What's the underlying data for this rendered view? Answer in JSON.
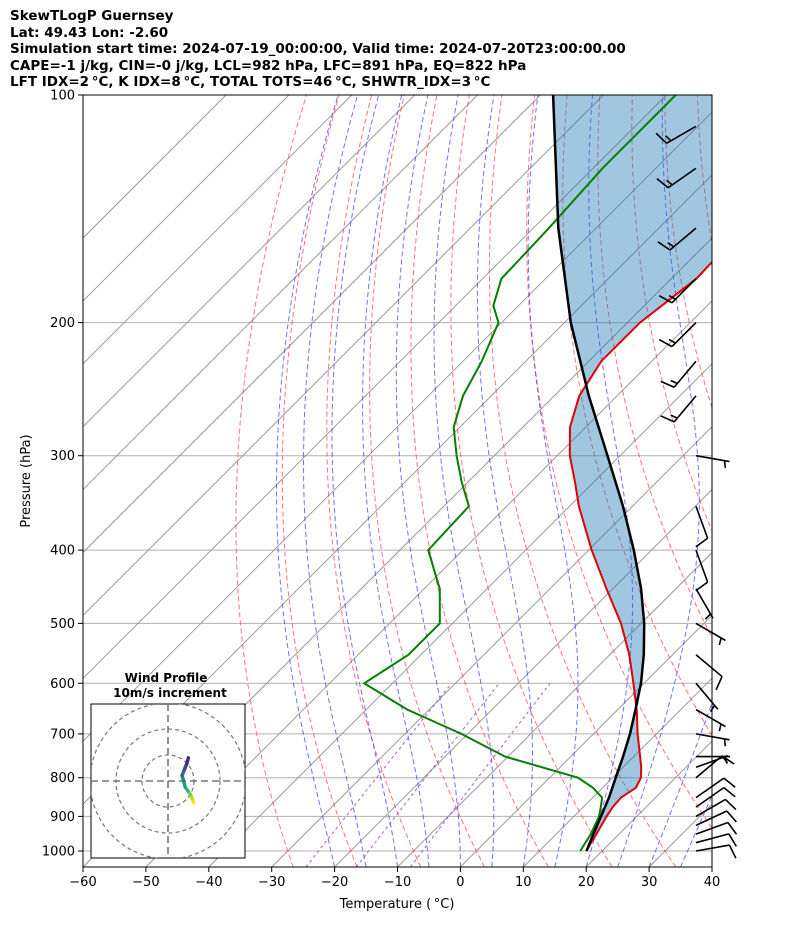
{
  "header": {
    "line1": "SkewTLogP Guernsey",
    "line2": "Lat: 49.43   Lon: -2.60",
    "line3": "Simulation start time: 2024-07-19_00:00:00, Valid time: 2024-07-20T23:00:00.00",
    "line4": "CAPE=-1 j/kg, CIN=-0 j/kg, LCL=982 hPa, LFC=891 hPa, EQ=822 hPa",
    "line5": "LFT IDX=2 °C, K IDX=8 °C, TOTAL TOTS=46 °C, SHWTR_IDX=3 °C"
  },
  "chart_data": {
    "type": "skew-t log-p",
    "xlabel": "Temperature ( °C)",
    "ylabel": "Pressure (hPa)",
    "xlim": [
      -60,
      40
    ],
    "ylim_hpa": [
      1050,
      100
    ],
    "x_ticks": [
      "−60",
      "−50",
      "−40",
      "−30",
      "−20",
      "−10",
      "0",
      "10",
      "20",
      "30",
      "40"
    ],
    "x_tick_values": [
      -60,
      -50,
      -40,
      -30,
      -20,
      -10,
      0,
      10,
      20,
      30,
      40
    ],
    "y_ticks": [
      "1000",
      "900",
      "800",
      "700",
      "600",
      "500",
      "400",
      "300",
      "200",
      "100"
    ],
    "y_tick_values": [
      1000,
      900,
      800,
      700,
      600,
      500,
      400,
      300,
      200,
      100
    ],
    "grid": true,
    "colors": {
      "temperature": "#e00000",
      "dewpoint": "#008000",
      "parcel": "#000000",
      "shade": "#1f77b4",
      "dry_adiabat": "#ff4444",
      "moist_adiabat": "#3333ff",
      "mixing_ratio": "#9933cc",
      "isotherm": "#999999"
    },
    "series": [
      {
        "key": "temperature",
        "pressure": [
          1000,
          975,
          950,
          925,
          900,
          875,
          850,
          825,
          800,
          775,
          750,
          700,
          650,
          600,
          550,
          500,
          450,
          400,
          350,
          325,
          300,
          275,
          250,
          225,
          200,
          175,
          150,
          125,
          100
        ],
        "temperature": [
          17.5,
          16.9,
          16.4,
          15.8,
          15.2,
          14.7,
          14.5,
          15.3,
          14.5,
          12.9,
          11.0,
          7.0,
          3.0,
          -1.7,
          -6.9,
          -13.2,
          -21.0,
          -29.5,
          -38.5,
          -43.0,
          -48.0,
          -52.5,
          -56.0,
          -58.0,
          -58.0,
          -56.0,
          -56.5,
          -57.0,
          -57.0
        ]
      },
      {
        "key": "dewpoint",
        "pressure": [
          1000,
          950,
          900,
          875,
          850,
          825,
          800,
          750,
          700,
          650,
          600,
          550,
          500,
          450,
          400,
          350,
          325,
          300,
          275,
          250,
          225,
          200,
          190,
          175,
          150,
          125,
          100
        ],
        "dewpoint": [
          16.5,
          15.5,
          14.0,
          12.8,
          11.5,
          8.5,
          4.5,
          -10.5,
          -21.0,
          -33.5,
          -44.5,
          -42.0,
          -42.0,
          -47.5,
          -55.5,
          -56.0,
          -61.0,
          -66.0,
          -71.0,
          -74.5,
          -77.0,
          -80.5,
          -84.0,
          -87.0,
          -87.5,
          -88.5,
          -88.5
        ]
      },
      {
        "key": "parcel",
        "pressure": [
          1000,
          950,
          900,
          850,
          800,
          750,
          700,
          650,
          600,
          550,
          500,
          450,
          400,
          350,
          300,
          250,
          200,
          150,
          100
        ],
        "temperature": [
          17.5,
          15.9,
          14.3,
          12.6,
          10.5,
          8.3,
          5.8,
          2.8,
          -0.5,
          -4.6,
          -9.5,
          -15.5,
          -22.8,
          -31.5,
          -42.0,
          -54.5,
          -69.0,
          -86.0,
          -108.0
        ]
      }
    ],
    "wind_barbs": [
      {
        "pressure": 1000,
        "speed_kt": 10,
        "direction_deg": 80
      },
      {
        "pressure": 975,
        "speed_kt": 10,
        "direction_deg": 75
      },
      {
        "pressure": 950,
        "speed_kt": 10,
        "direction_deg": 70
      },
      {
        "pressure": 925,
        "speed_kt": 10,
        "direction_deg": 65
      },
      {
        "pressure": 900,
        "speed_kt": 10,
        "direction_deg": 60
      },
      {
        "pressure": 875,
        "speed_kt": 10,
        "direction_deg": 55
      },
      {
        "pressure": 850,
        "speed_kt": 10,
        "direction_deg": 55
      },
      {
        "pressure": 800,
        "speed_kt": 10,
        "direction_deg": 50
      },
      {
        "pressure": 775,
        "speed_kt": 5,
        "direction_deg": 70
      },
      {
        "pressure": 750,
        "speed_kt": 5,
        "direction_deg": 90
      },
      {
        "pressure": 700,
        "speed_kt": 5,
        "direction_deg": 100
      },
      {
        "pressure": 650,
        "speed_kt": 5,
        "direction_deg": 120
      },
      {
        "pressure": 600,
        "speed_kt": 5,
        "direction_deg": 140
      },
      {
        "pressure": 550,
        "speed_kt": 10,
        "direction_deg": 130
      },
      {
        "pressure": 500,
        "speed_kt": 5,
        "direction_deg": 120
      },
      {
        "pressure": 450,
        "speed_kt": 5,
        "direction_deg": 150
      },
      {
        "pressure": 400,
        "speed_kt": 10,
        "direction_deg": 160
      },
      {
        "pressure": 350,
        "speed_kt": 10,
        "direction_deg": 160
      },
      {
        "pressure": 300,
        "speed_kt": 5,
        "direction_deg": 100
      },
      {
        "pressure": 250,
        "speed_kt": 15,
        "direction_deg": 220
      },
      {
        "pressure": 225,
        "speed_kt": 15,
        "direction_deg": 220
      },
      {
        "pressure": 200,
        "speed_kt": 15,
        "direction_deg": 225
      },
      {
        "pressure": 175,
        "speed_kt": 15,
        "direction_deg": 225
      },
      {
        "pressure": 150,
        "speed_kt": 15,
        "direction_deg": 230
      },
      {
        "pressure": 125,
        "speed_kt": 15,
        "direction_deg": 235
      },
      {
        "pressure": 110,
        "speed_kt": 15,
        "direction_deg": 240
      }
    ],
    "hodograph": {
      "title": "Wind Profile",
      "subtitle": "10m/s increment",
      "rings_ms": [
        10,
        20,
        30
      ],
      "u_ms": [
        2.0,
        1.6,
        1.2,
        0.5,
        -0.2,
        -0.6,
        -1.0,
        -0.4,
        0.2,
        0.6
      ],
      "v_ms": [
        -3.0,
        -2.0,
        -1.0,
        0.0,
        1.0,
        2.5,
        4.0,
        5.5,
        7.0,
        8.5
      ]
    }
  }
}
